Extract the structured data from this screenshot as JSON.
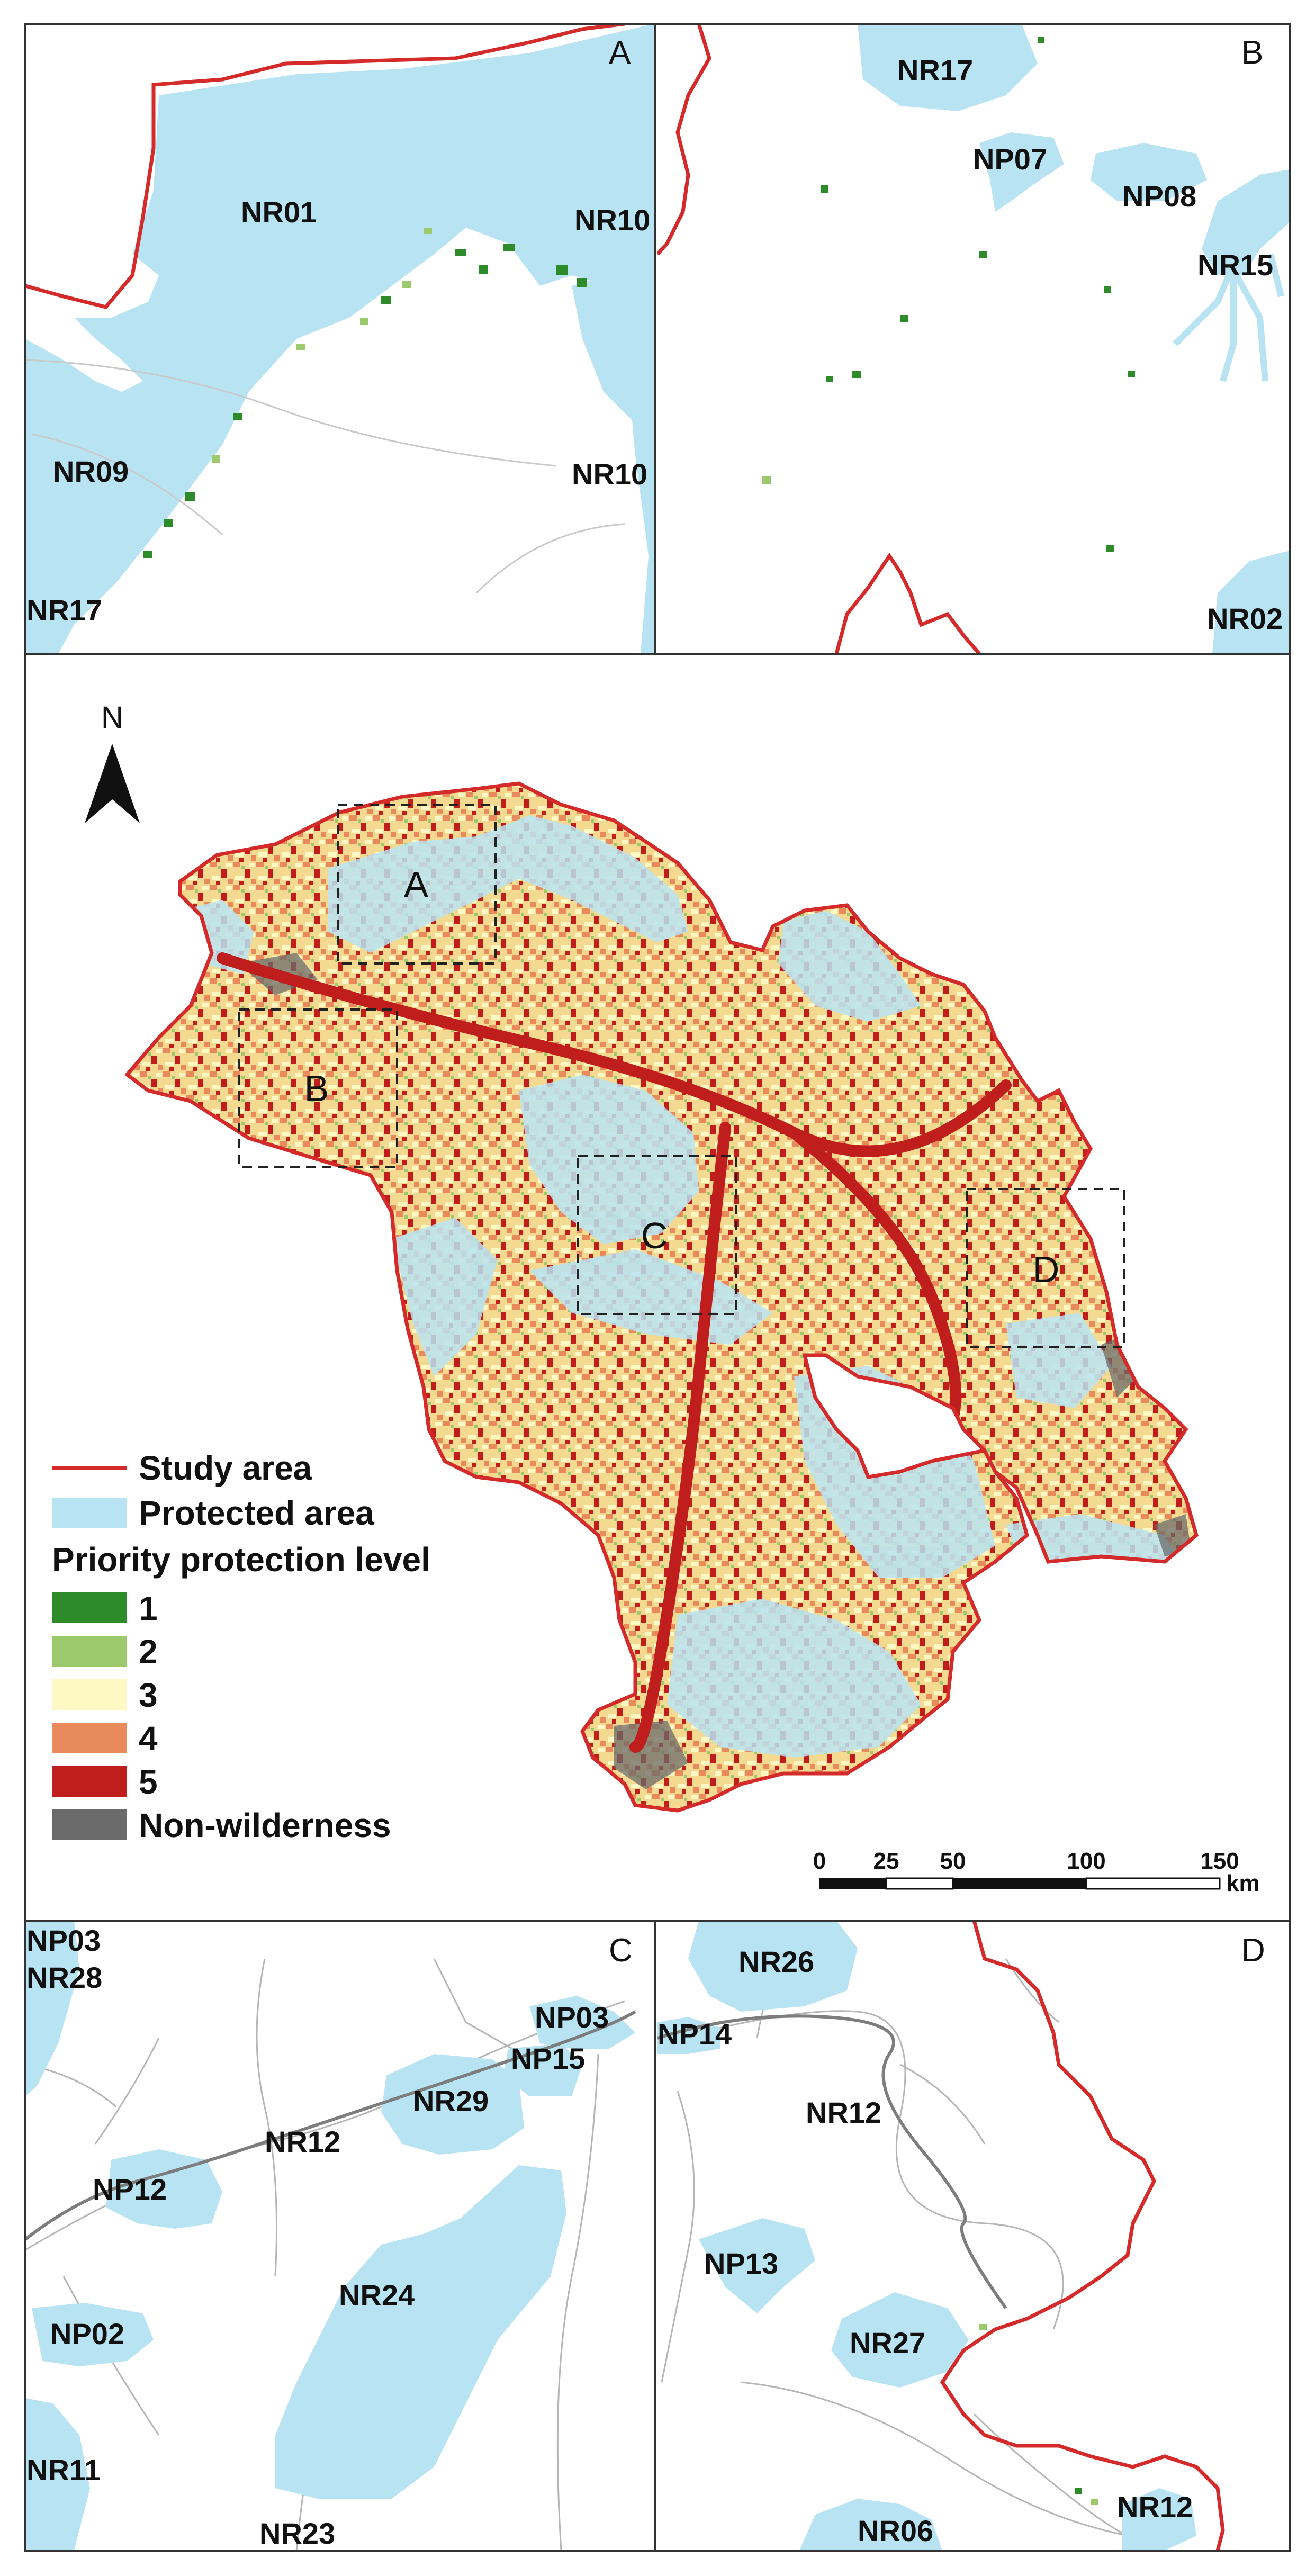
{
  "colors": {
    "study_area": "#d42a2a",
    "protected_area": "#b8e3f2",
    "level_1": "#2e8b2a",
    "level_2": "#9cc96b",
    "level_3": "#fdf8c4",
    "level_4": "#e98a5c",
    "level_5": "#c01d1d",
    "non_wilderness": "#6b6b6b",
    "rivers": "#9a9a9a",
    "frame": "#333333"
  },
  "icons": {
    "north_arrow": "north-arrow-icon"
  },
  "north_label": "N",
  "extent_boxes": [
    "A",
    "B",
    "C",
    "D"
  ],
  "panels": {
    "A": {
      "corner": "A",
      "labels": [
        "NR01",
        "NR10",
        "NR09",
        "NR10",
        "NR17"
      ]
    },
    "B": {
      "corner": "B",
      "labels": [
        "NR17",
        "NP07",
        "NP08",
        "NR15",
        "NR02"
      ]
    },
    "C": {
      "corner": "C",
      "labels": [
        "NP03",
        "NR28",
        "NP03",
        "NP15",
        "NR29",
        "NR12",
        "NP12",
        "NR24",
        "NP02",
        "NR11",
        "NR23"
      ]
    },
    "D": {
      "corner": "D",
      "labels": [
        "NR26",
        "NP14",
        "NR12",
        "NP13",
        "NR27",
        "NR06",
        "NR12"
      ]
    }
  },
  "legend": {
    "study_area": "Study area",
    "protected_area": "Protected area",
    "priority_title": "Priority protection level",
    "levels": [
      "1",
      "2",
      "3",
      "4",
      "5"
    ],
    "non_wilderness": "Non-wilderness"
  },
  "scale_bar": {
    "ticks": [
      "0",
      "25",
      "50",
      "100",
      "150"
    ],
    "unit": "km"
  }
}
